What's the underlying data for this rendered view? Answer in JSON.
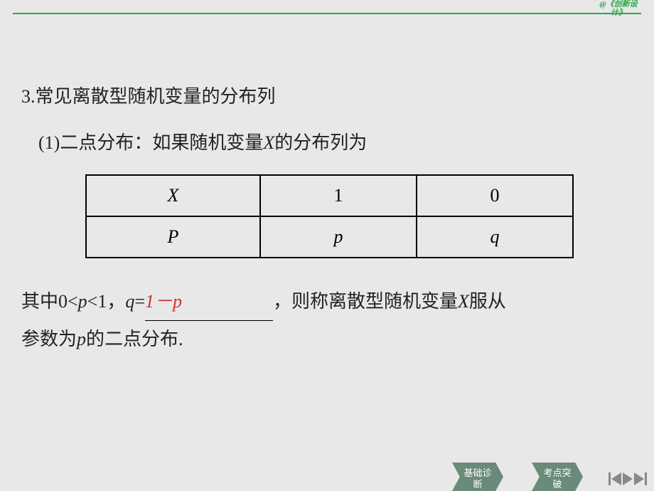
{
  "brand": {
    "line1": "@《创新设",
    "line2": "计》"
  },
  "heading": {
    "num": "3.",
    "text": "常见离散型随机变量的分布列"
  },
  "sub": {
    "num": "(1)",
    "label": "二点分布：如果随机变量",
    "var": "X",
    "tail": "的分布列为"
  },
  "table": {
    "r1": {
      "c1": "X",
      "c2": "1",
      "c3": "0"
    },
    "r2": {
      "c1": "P",
      "c2": "p",
      "c3": "q"
    }
  },
  "para": {
    "t1": "其中0<",
    "p1": "p",
    "t2": "<1，",
    "q": "q",
    "eq": "=",
    "answer": "1－p",
    "t3": "，则称离散型随机变量",
    "x": "X",
    "t4": "服从",
    "t5": "参数为",
    "p2": "p",
    "t6": "的二点分布."
  },
  "footer": {
    "btn1a": "基础诊",
    "btn1b": "断",
    "btn2a": "考点突",
    "btn2b": "破"
  },
  "style": {
    "accent": "#2aa848",
    "answer_color": "#cc3333",
    "btn_bg": "#6a8a7a",
    "body_fontsize": 26
  }
}
